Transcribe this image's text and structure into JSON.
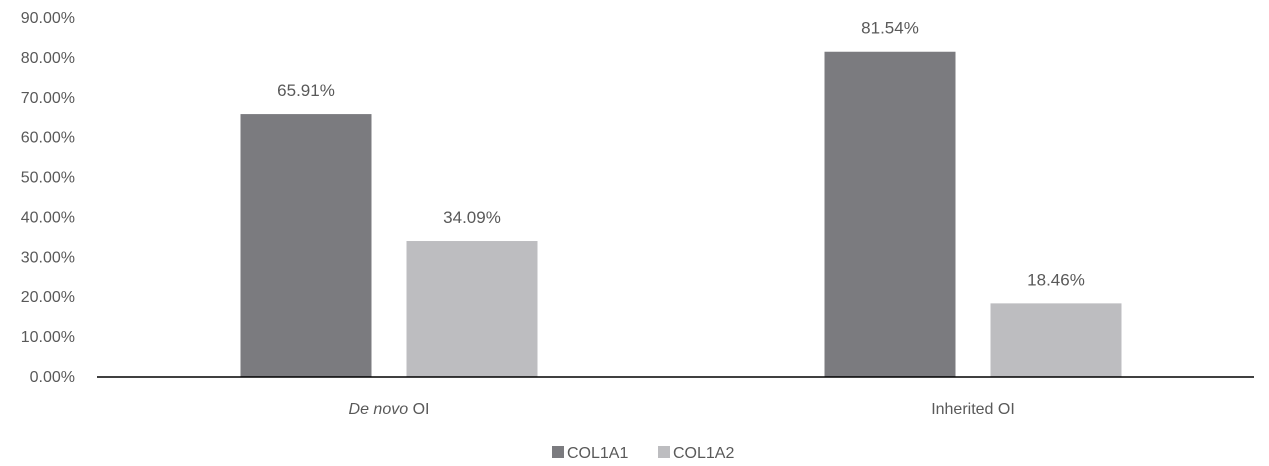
{
  "chart_data": {
    "type": "bar",
    "categories": [
      "De novo OI",
      "Inherited OI"
    ],
    "category_labels": [
      {
        "italic": "De novo",
        "rest": " OI"
      },
      {
        "italic": "",
        "rest": "Inherited OI"
      }
    ],
    "series": [
      {
        "name": "COL1A1",
        "values": [
          65.91,
          81.54
        ],
        "labels": [
          "65.91%",
          "81.54%"
        ],
        "color": "#7b7b7f"
      },
      {
        "name": "COL1A2",
        "values": [
          34.09,
          18.46
        ],
        "labels": [
          "34.09%",
          "18.46%"
        ],
        "color": "#bdbdc0"
      }
    ],
    "ylim": [
      0,
      90
    ],
    "yticks": [
      "0.00%",
      "10.00%",
      "20.00%",
      "30.00%",
      "40.00%",
      "50.00%",
      "60.00%",
      "70.00%",
      "80.00%",
      "90.00%"
    ],
    "title": "",
    "xlabel": "",
    "ylabel": "",
    "grid": false,
    "legend_position": "bottom-center"
  }
}
